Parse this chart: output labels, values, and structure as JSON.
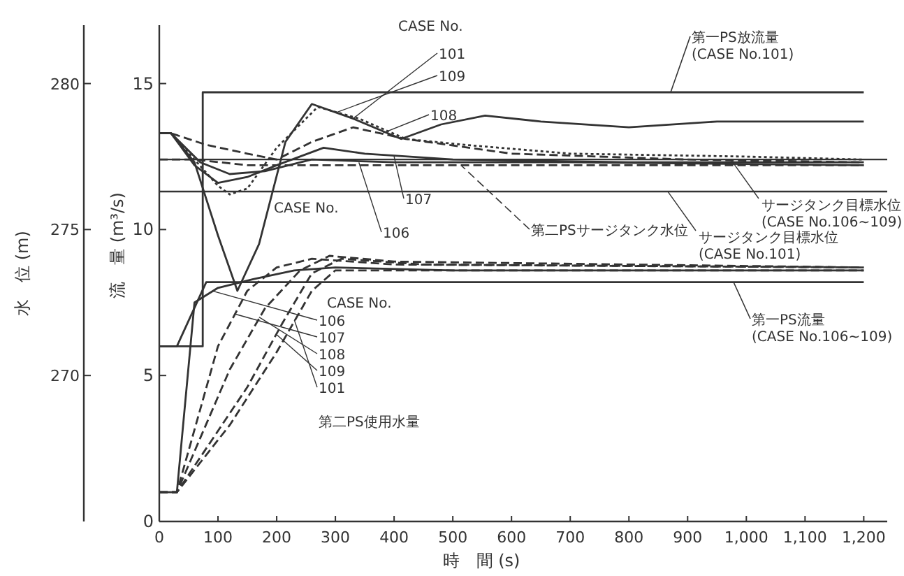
{
  "chart_data": {
    "type": "line",
    "xlabel": "時　間 (s)",
    "ylabel": "流　量 (m³/s)",
    "y2label": "水　位 (m)",
    "xlim": [
      0,
      1240
    ],
    "xticks": [
      0,
      100,
      200,
      300,
      400,
      500,
      600,
      700,
      800,
      900,
      {
        "value": 1000,
        "label": "1,000"
      },
      {
        "value": 1100,
        "label": "1,100"
      },
      {
        "value": 1200,
        "label": "1,200"
      }
    ],
    "ylim": [
      0,
      17
    ],
    "yticks": [
      0,
      5,
      10,
      15
    ],
    "y2lim": [
      265,
      282
    ],
    "y2ticks": [
      270,
      275,
      280
    ],
    "grid": false,
    "marker": "none",
    "series": [
      {
        "axis": "y2",
        "color": "#333333",
        "line_style": "solid",
        "x": [
          0,
          20,
          60,
          100,
          133,
          170,
          215,
          260,
          330,
          412,
          480,
          555,
          650,
          800,
          950,
          1200
        ],
        "values": [
          278.3,
          278.3,
          277.3,
          274.8,
          272.9,
          274.5,
          278.0,
          279.3,
          278.8,
          278.1,
          278.6,
          278.9,
          278.7,
          278.5,
          278.7,
          278.7
        ]
      },
      {
        "axis": "y2",
        "color": "#333333",
        "line_style": "dotted",
        "x": [
          0,
          20,
          60,
          100,
          120,
          150,
          200,
          270,
          340,
          420,
          520,
          700,
          1000,
          1200
        ],
        "values": [
          278.3,
          278.3,
          277.4,
          276.5,
          276.2,
          276.4,
          277.8,
          279.2,
          278.8,
          278.1,
          277.9,
          277.6,
          277.5,
          277.4
        ]
      },
      {
        "axis": "y2",
        "color": "#333333",
        "line_style": "dashed",
        "x": [
          0,
          20,
          80,
          150,
          200,
          260,
          330,
          420,
          600,
          900,
          1200
        ],
        "values": [
          278.3,
          278.3,
          277.9,
          277.6,
          277.4,
          278.0,
          278.5,
          278.1,
          277.6,
          277.4,
          277.3
        ]
      },
      {
        "axis": "y2",
        "color": "#333333",
        "line_style": "solid",
        "x": [
          0,
          20,
          60,
          100,
          150,
          200,
          280,
          350,
          500,
          800,
          1200
        ],
        "values": [
          278.3,
          278.3,
          277.2,
          276.6,
          276.8,
          277.2,
          277.8,
          277.6,
          277.4,
          277.3,
          277.3
        ]
      },
      {
        "axis": "y2",
        "color": "#333333",
        "line_style": "solid",
        "x": [
          0,
          20,
          70,
          120,
          180,
          260,
          400,
          700,
          1200
        ],
        "values": [
          278.3,
          278.3,
          277.3,
          276.9,
          277.0,
          277.4,
          277.3,
          277.3,
          277.2
        ]
      },
      {
        "name": "第二PSサージタンク水位",
        "axis": "y2",
        "color": "#333333",
        "line_style": "dashed",
        "x": [
          0,
          60,
          150,
          300,
          600,
          1200
        ],
        "values": [
          277.4,
          277.4,
          277.2,
          277.2,
          277.2,
          277.2
        ]
      },
      {
        "name": "第一PS放流量\n(CASE No.101)",
        "color": "#333333",
        "line_style": "solid",
        "x": [
          0,
          74,
          74,
          1200
        ],
        "values": [
          6,
          6,
          14.7,
          14.7
        ]
      },
      {
        "name": "第一PS流量\n(CASE No.106~109)",
        "color": "#333333",
        "line_style": "solid",
        "x": [
          0,
          30,
          80,
          1200
        ],
        "values": [
          6,
          6,
          8.2,
          8.2
        ]
      },
      {
        "color": "#333333",
        "line_style": "solid",
        "x": [
          0,
          30,
          60,
          100,
          160,
          230,
          300,
          500,
          1200
        ],
        "values": [
          1,
          1,
          7.5,
          8.0,
          8.3,
          8.6,
          8.7,
          8.6,
          8.6
        ]
      },
      {
        "color": "#333333",
        "line_style": "dashed",
        "x": [
          0,
          30,
          100,
          150,
          200,
          260,
          400,
          1200
        ],
        "values": [
          1,
          1,
          6.0,
          7.9,
          8.7,
          9.0,
          8.8,
          8.7
        ]
      },
      {
        "color": "#333333",
        "line_style": "dashed",
        "x": [
          0,
          30,
          120,
          180,
          240,
          290,
          400,
          1200
        ],
        "values": [
          1,
          1,
          5.2,
          7.3,
          8.6,
          9.1,
          8.9,
          8.7
        ]
      },
      {
        "color": "#333333",
        "line_style": "dashed",
        "x": [
          0,
          30,
          150,
          210,
          260,
          310,
          450,
          1200
        ],
        "values": [
          1,
          1,
          4.6,
          6.8,
          8.5,
          9.0,
          8.8,
          8.7
        ]
      },
      {
        "color": "#333333",
        "line_style": "dashed",
        "x": [
          0,
          30,
          120,
          200,
          260,
          300,
          400,
          1200
        ],
        "values": [
          1,
          1,
          3.3,
          5.8,
          7.9,
          8.6,
          8.6,
          8.6
        ]
      }
    ],
    "ref_lines": [
      {
        "axis": "y2",
        "value": 277.4,
        "label": "サージタンク目標水位\n(CASE No.106~109)",
        "color": "#333333",
        "line_style": "solid"
      },
      {
        "axis": "y2",
        "value": 276.3,
        "label": "サージタンク目標水位\n(CASE No.101)",
        "color": "#333333",
        "line_style": "solid"
      }
    ],
    "annotations": [
      "CASE No.",
      "CASE No.",
      "CASE No.",
      "第二PS使用水量",
      {
        "text": "101",
        "x": 330,
        "y": 13.8
      },
      {
        "text": "109",
        "x": 300,
        "y": 14.0
      },
      {
        "text": "108",
        "x": 380,
        "y": 13.3
      },
      {
        "text": "107",
        "x": 400,
        "y": 12.5
      },
      {
        "text": "106",
        "x": 340,
        "y": 12.3
      },
      {
        "text": "106",
        "x": 90,
        "y": 7.9
      },
      {
        "text": "107",
        "x": 130,
        "y": 7.1
      },
      {
        "text": "108",
        "x": 170,
        "y": 7.0
      },
      {
        "text": "109",
        "x": 200,
        "y": 6.4
      },
      {
        "text": "101",
        "x": 230,
        "y": 6.9
      }
    ]
  }
}
